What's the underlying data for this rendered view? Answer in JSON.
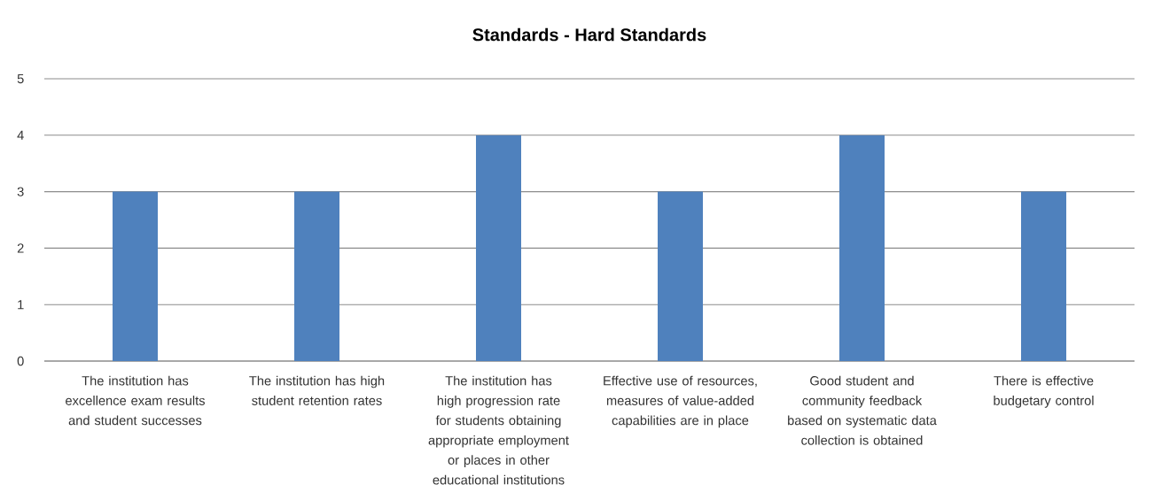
{
  "chart_data": {
    "type": "bar",
    "title": "Standards - Hard Standards",
    "categories": [
      "The institution has excellence exam results and student successes",
      "The institution has high student retention rates",
      "The institution has high progression rate for students obtaining appropriate employment or places in other educational institutions",
      "Effective use of resources, measures of value-added capabilities are in place",
      "Good student and community feedback based on systematic data collection is obtained",
      "There is effective budgetary control"
    ],
    "values": [
      3,
      3,
      4,
      3,
      4,
      3
    ],
    "color": "#4f81bd",
    "ylim": [
      0,
      5
    ],
    "yticks": [
      0,
      1,
      2,
      3,
      4,
      5
    ],
    "grid": "y"
  }
}
